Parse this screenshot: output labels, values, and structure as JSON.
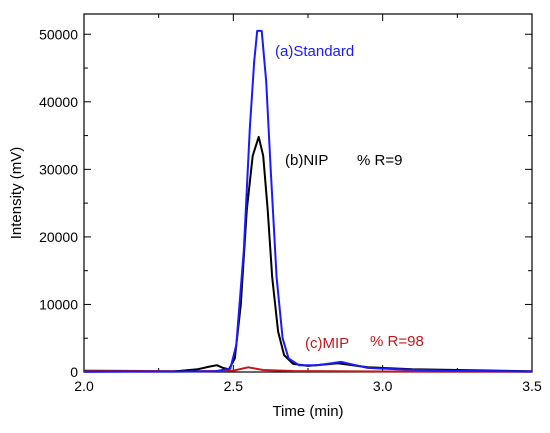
{
  "chart_data": {
    "type": "line",
    "xlabel": "Time (min)",
    "ylabel": "Intensity (mV)",
    "xlim": [
      2.0,
      3.5
    ],
    "ylim": [
      0,
      53000
    ],
    "x_ticks": [
      2.0,
      2.5,
      3.0,
      3.5
    ],
    "x_tick_labels": [
      "2.0",
      "2.5",
      "3.0",
      "3.5"
    ],
    "y_ticks": [
      0,
      10000,
      20000,
      30000,
      40000,
      50000
    ],
    "y_tick_labels": [
      "0",
      "10000",
      "20000",
      "30000",
      "40000",
      "50000"
    ],
    "grid": false,
    "series": [
      {
        "name": "(a)Standard",
        "color": "#1a1aff",
        "points": [
          [
            2.0,
            50
          ],
          [
            2.3,
            60
          ],
          [
            2.44,
            120
          ],
          [
            2.49,
            500
          ],
          [
            2.51,
            4000
          ],
          [
            2.535,
            18000
          ],
          [
            2.555,
            36000
          ],
          [
            2.57,
            46000
          ],
          [
            2.58,
            50500
          ],
          [
            2.595,
            50500
          ],
          [
            2.61,
            43000
          ],
          [
            2.625,
            30000
          ],
          [
            2.645,
            14000
          ],
          [
            2.665,
            5000
          ],
          [
            2.685,
            2000
          ],
          [
            2.72,
            1000
          ],
          [
            2.78,
            1000
          ],
          [
            2.83,
            1300
          ],
          [
            2.86,
            1500
          ],
          [
            2.9,
            1100
          ],
          [
            2.95,
            600
          ],
          [
            3.05,
            400
          ],
          [
            3.2,
            200
          ],
          [
            3.35,
            150
          ],
          [
            3.5,
            80
          ]
        ]
      },
      {
        "name": "(b)NIP",
        "color": "#000000",
        "points": [
          [
            2.0,
            60
          ],
          [
            2.3,
            80
          ],
          [
            2.38,
            400
          ],
          [
            2.42,
            800
          ],
          [
            2.445,
            1000
          ],
          [
            2.465,
            600
          ],
          [
            2.485,
            400
          ],
          [
            2.505,
            2000
          ],
          [
            2.525,
            10000
          ],
          [
            2.545,
            24000
          ],
          [
            2.565,
            32000
          ],
          [
            2.585,
            34800
          ],
          [
            2.6,
            32000
          ],
          [
            2.615,
            24000
          ],
          [
            2.63,
            14000
          ],
          [
            2.65,
            6000
          ],
          [
            2.67,
            2500
          ],
          [
            2.7,
            1200
          ],
          [
            2.75,
            900
          ],
          [
            2.8,
            1100
          ],
          [
            2.85,
            1300
          ],
          [
            2.9,
            1000
          ],
          [
            2.95,
            700
          ],
          [
            3.1,
            400
          ],
          [
            3.3,
            250
          ],
          [
            3.5,
            120
          ]
        ]
      },
      {
        "name": "(c)MIP",
        "color": "#c0181e",
        "points": [
          [
            2.0,
            200
          ],
          [
            2.2,
            150
          ],
          [
            2.35,
            100
          ],
          [
            2.45,
            150
          ],
          [
            2.5,
            200
          ],
          [
            2.55,
            700
          ],
          [
            2.6,
            300
          ],
          [
            2.7,
            150
          ],
          [
            2.85,
            100
          ],
          [
            3.0,
            80
          ],
          [
            3.2,
            60
          ],
          [
            3.5,
            50
          ]
        ]
      }
    ],
    "annotations": {
      "standard": {
        "text": "(a)Standard",
        "color": "#1a1aff"
      },
      "nip": {
        "text": "(b)NIP",
        "color": "#000000"
      },
      "nip_r": {
        "text": "% R=9",
        "color": "#000000"
      },
      "mip": {
        "text": "(c)MIP",
        "color": "#c0181e"
      },
      "mip_r": {
        "text": "% R=98",
        "color": "#c0181e"
      }
    }
  }
}
